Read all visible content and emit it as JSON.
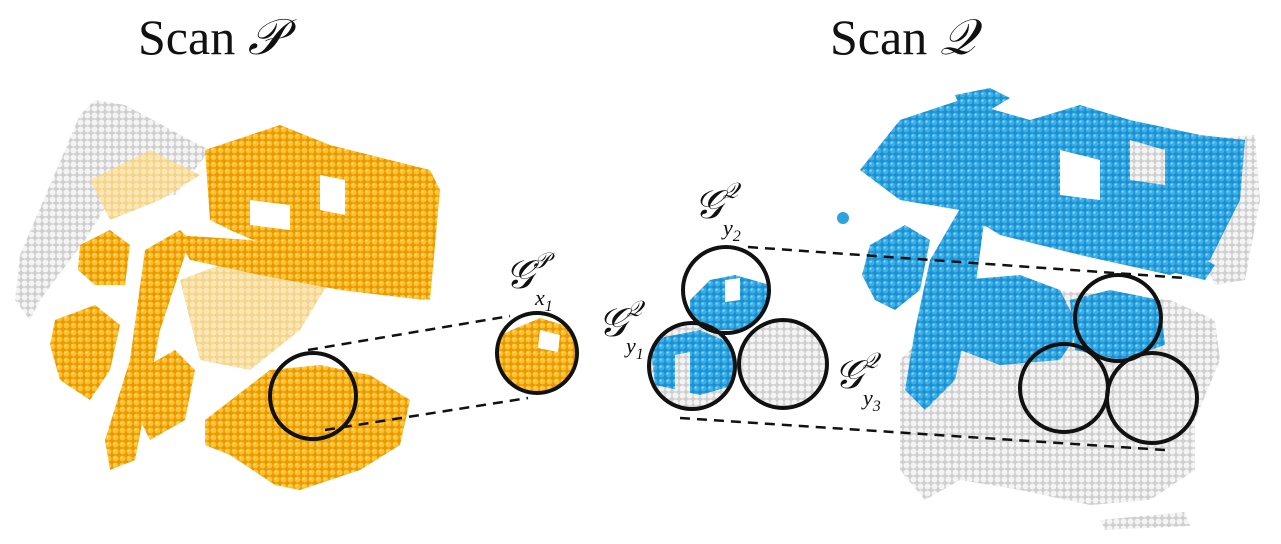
{
  "titles": {
    "scan_p": {
      "word": "Scan",
      "symbol": "𝒫"
    },
    "scan_q": {
      "word": "Scan",
      "symbol": "𝒬"
    }
  },
  "labels": {
    "gx1": {
      "base": "𝒢",
      "sup": "𝒫",
      "sub": "x",
      "subsub": "1"
    },
    "gy1": {
      "base": "𝒢",
      "sup": "𝒬",
      "sub": "y",
      "subsub": "1"
    },
    "gy2": {
      "base": "𝒢",
      "sup": "𝒬",
      "sub": "y",
      "subsub": "2"
    },
    "gy3": {
      "base": "𝒢",
      "sup": "𝒬",
      "sub": "y",
      "subsub": "3"
    }
  },
  "colors": {
    "scan_p": "#f1a90f",
    "scan_p_light": "#f7df9e",
    "scan_q": "#2ca3de",
    "scan_q_light": "#a8d9f2",
    "uncolored": "#e9e9e9",
    "circle": "#111111"
  }
}
